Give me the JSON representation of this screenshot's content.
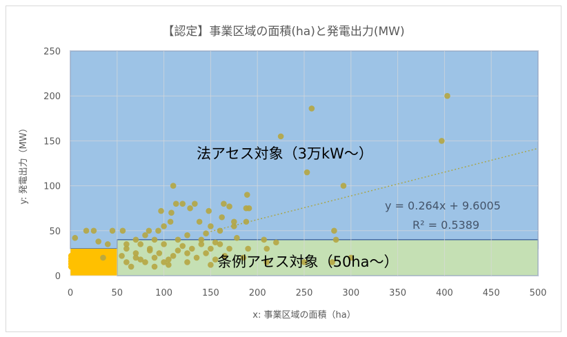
{
  "chart_data": {
    "type": "scatter",
    "title": "【認定】事業区域の面積(ha)と発電出力(MW)",
    "xlabel": "x: 事業区域の面積（ha）",
    "ylabel": "y: 発電出力（MW）",
    "xlim": [
      0,
      500
    ],
    "ylim": [
      0,
      250
    ],
    "xticks": [
      0,
      50,
      100,
      150,
      200,
      250,
      300,
      350,
      400,
      450,
      500
    ],
    "yticks": [
      0,
      50,
      100,
      150,
      200,
      250
    ],
    "grid": true,
    "regions": [
      {
        "label": "法アセス対象（3万kW～）",
        "x_range": [
          0,
          500
        ],
        "y_range": [
          30,
          250
        ],
        "color": "#9dc3e6"
      },
      {
        "label": "条例アセス対象（50ha～）",
        "x_range": [
          50,
          500
        ],
        "y_range": [
          0,
          40
        ],
        "color": "#c5e0b4"
      },
      {
        "label": "",
        "x_range": [
          0,
          50
        ],
        "y_range": [
          0,
          30
        ],
        "color": "#ffc000"
      }
    ],
    "trendline": {
      "equation": "y = 0.264x + 9.6005",
      "r_squared": "R² = 0.5389",
      "slope": 0.264,
      "intercept": 9.6005
    },
    "series": [
      {
        "marker_color": "#b5a642",
        "points": [
          [
            403,
            200
          ],
          [
            258,
            186
          ],
          [
            225,
            155
          ],
          [
            397,
            150
          ],
          [
            253,
            115
          ],
          [
            292,
            100
          ],
          [
            110,
            100
          ],
          [
            189,
            90
          ],
          [
            188,
            75
          ],
          [
            191,
            75
          ],
          [
            133,
            80
          ],
          [
            113,
            80
          ],
          [
            120,
            80
          ],
          [
            164,
            80
          ],
          [
            170,
            77
          ],
          [
            128,
            75
          ],
          [
            148,
            72
          ],
          [
            97,
            72
          ],
          [
            108,
            70
          ],
          [
            162,
            65
          ],
          [
            175,
            60
          ],
          [
            188,
            60
          ],
          [
            138,
            60
          ],
          [
            107,
            60
          ],
          [
            150,
            55
          ],
          [
            100,
            55
          ],
          [
            94,
            50
          ],
          [
            84,
            50
          ],
          [
            56,
            50
          ],
          [
            45,
            50
          ],
          [
            25,
            50
          ],
          [
            17,
            50
          ],
          [
            80,
            45
          ],
          [
            125,
            45
          ],
          [
            145,
            47
          ],
          [
            160,
            50
          ],
          [
            175,
            55
          ],
          [
            282,
            50
          ],
          [
            284,
            40
          ],
          [
            207,
            40
          ],
          [
            220,
            37
          ],
          [
            5,
            42
          ],
          [
            70,
            40
          ],
          [
            90,
            40
          ],
          [
            115,
            40
          ],
          [
            140,
            40
          ],
          [
            155,
            37
          ],
          [
            30,
            38
          ],
          [
            40,
            35
          ],
          [
            60,
            35
          ],
          [
            75,
            35
          ],
          [
            100,
            35
          ],
          [
            120,
            33
          ],
          [
            150,
            30
          ],
          [
            170,
            30
          ],
          [
            190,
            30
          ],
          [
            210,
            30
          ],
          [
            60,
            30
          ],
          [
            85,
            30
          ],
          [
            130,
            30
          ],
          [
            70,
            25
          ],
          [
            95,
            25
          ],
          [
            115,
            28
          ],
          [
            145,
            25
          ],
          [
            165,
            22
          ],
          [
            185,
            20
          ],
          [
            70,
            20
          ],
          [
            90,
            20
          ],
          [
            110,
            22
          ],
          [
            135,
            20
          ],
          [
            155,
            18
          ],
          [
            60,
            15
          ],
          [
            80,
            15
          ],
          [
            100,
            15
          ],
          [
            125,
            15
          ],
          [
            150,
            12
          ],
          [
            65,
            10
          ],
          [
            90,
            10
          ],
          [
            210,
            15
          ],
          [
            250,
            15
          ],
          [
            300,
            20
          ],
          [
            280,
            15
          ],
          [
            35,
            20
          ],
          [
            55,
            22
          ],
          [
            75,
            18
          ],
          [
            105,
            18
          ],
          [
            125,
            25
          ],
          [
            105,
            12
          ],
          [
            85,
            28
          ],
          [
            140,
            35
          ],
          [
            160,
            35
          ],
          [
            178,
            42
          ]
        ]
      }
    ]
  }
}
